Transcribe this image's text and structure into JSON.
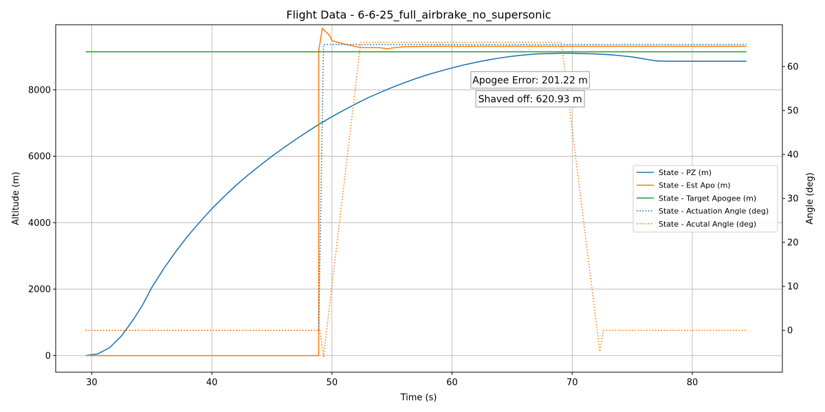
{
  "chart_data": {
    "type": "line",
    "title": "Flight Data - 6-6-25_full_airbrake_no_supersonic",
    "xlabel": "Time (s)",
    "ylabel": "Altitude (m)",
    "y2label": "Angle (deg)",
    "xlim": [
      27,
      87.5
    ],
    "ylim": [
      -500,
      9960
    ],
    "y2lim": [
      -9.5,
      69.5
    ],
    "xticks": [
      30,
      40,
      50,
      60,
      70,
      80
    ],
    "yticks": [
      0,
      2000,
      4000,
      6000,
      8000
    ],
    "y2ticks": [
      0,
      10,
      20,
      30,
      40,
      50,
      60
    ],
    "grid": true,
    "legend_position": "center-right",
    "series": [
      {
        "name": "State - PZ (m)",
        "axis": "left",
        "color": "#1f77b4",
        "style": "solid",
        "points": [
          [
            29.5,
            0
          ],
          [
            30.5,
            50
          ],
          [
            31.5,
            240
          ],
          [
            32.5,
            600
          ],
          [
            33.5,
            1100
          ],
          [
            34.2,
            1500
          ],
          [
            35,
            2050
          ],
          [
            36,
            2620
          ],
          [
            37,
            3130
          ],
          [
            38,
            3600
          ],
          [
            39,
            4020
          ],
          [
            40,
            4420
          ],
          [
            41,
            4780
          ],
          [
            42,
            5120
          ],
          [
            43,
            5430
          ],
          [
            44,
            5720
          ],
          [
            45,
            6000
          ],
          [
            46,
            6260
          ],
          [
            47,
            6510
          ],
          [
            48,
            6750
          ],
          [
            49,
            6980
          ],
          [
            50,
            7190
          ],
          [
            51,
            7390
          ],
          [
            52,
            7580
          ],
          [
            53,
            7760
          ],
          [
            54,
            7920
          ],
          [
            55,
            8070
          ],
          [
            56,
            8210
          ],
          [
            57,
            8340
          ],
          [
            58,
            8460
          ],
          [
            59,
            8560
          ],
          [
            60,
            8660
          ],
          [
            61,
            8750
          ],
          [
            62,
            8830
          ],
          [
            63,
            8900
          ],
          [
            64,
            8960
          ],
          [
            65,
            9010
          ],
          [
            66,
            9050
          ],
          [
            67,
            9080
          ],
          [
            68,
            9090
          ],
          [
            69,
            9100
          ],
          [
            70,
            9100
          ],
          [
            71,
            9090
          ],
          [
            72,
            9080
          ],
          [
            73,
            9060
          ],
          [
            74,
            9030
          ],
          [
            75,
            8990
          ],
          [
            76,
            8930
          ],
          [
            77,
            8870
          ],
          [
            78,
            8860
          ],
          [
            79,
            8860
          ],
          [
            80,
            8860
          ],
          [
            81,
            8860
          ],
          [
            82,
            8860
          ],
          [
            83,
            8860
          ],
          [
            84.5,
            8860
          ]
        ]
      },
      {
        "name": "State - Est Apo (m)",
        "axis": "left",
        "color": "#ff7f0e",
        "style": "solid",
        "points": [
          [
            29.5,
            0
          ],
          [
            48.9,
            0
          ],
          [
            48.9,
            9180
          ],
          [
            49.2,
            9850
          ],
          [
            49.5,
            9740
          ],
          [
            49.8,
            9640
          ],
          [
            50,
            9480
          ],
          [
            51,
            9380
          ],
          [
            52,
            9300
          ],
          [
            52.5,
            9270
          ],
          [
            53,
            9270
          ],
          [
            54,
            9270
          ],
          [
            54.6,
            9230
          ],
          [
            55,
            9260
          ],
          [
            56,
            9300
          ],
          [
            58,
            9310
          ],
          [
            60,
            9310
          ],
          [
            62,
            9310
          ],
          [
            65,
            9310
          ],
          [
            70,
            9310
          ],
          [
            75,
            9310
          ],
          [
            80,
            9310
          ],
          [
            84.5,
            9310
          ]
        ]
      },
      {
        "name": "State - Target Apogee (m)",
        "axis": "left",
        "color": "#2ca02c",
        "style": "solid",
        "points": [
          [
            29.5,
            9144
          ],
          [
            84.5,
            9144
          ]
        ]
      },
      {
        "name": "State - Actuation Angle (deg)",
        "axis": "right",
        "color": "#1f77b4",
        "style": "dotted",
        "points": [
          [
            29.5,
            0
          ],
          [
            48.9,
            0
          ],
          [
            49.3,
            65
          ],
          [
            55,
            65
          ],
          [
            60,
            65
          ],
          [
            70,
            65
          ],
          [
            80,
            65
          ],
          [
            84.5,
            65
          ]
        ]
      },
      {
        "name": "State - Acutal Angle (deg)",
        "axis": "right",
        "color": "#ff7f0e",
        "style": "dotted",
        "points": [
          [
            29.5,
            0
          ],
          [
            49,
            0
          ],
          [
            49.3,
            -6
          ],
          [
            52.4,
            65.5
          ],
          [
            69.1,
            65.5
          ],
          [
            72.3,
            -4.8
          ],
          [
            72.6,
            0
          ],
          [
            84.5,
            0
          ]
        ]
      }
    ],
    "annotations": [
      {
        "text": "Apogee Error: 201.22 m",
        "x": 66.5,
        "y": 8300
      },
      {
        "text": "Shaved off: 620.93 m",
        "x": 66.5,
        "y": 7730
      }
    ]
  }
}
